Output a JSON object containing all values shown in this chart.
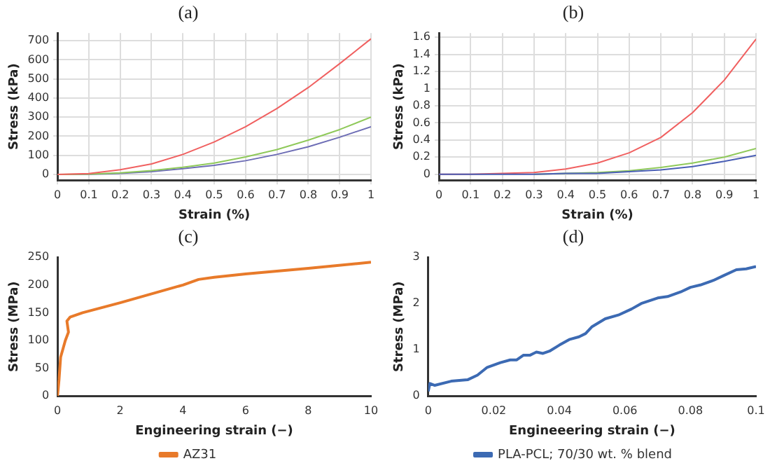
{
  "chart_data": [
    {
      "type": "line",
      "title": "(a)",
      "xlabel": "Strain (%)",
      "ylabel": "Stress (kPa)",
      "x": [
        0,
        0.1,
        0.2,
        0.3,
        0.4,
        0.5,
        0.6,
        0.7,
        0.8,
        0.9,
        1
      ],
      "xlim": [
        0,
        1
      ],
      "xticks": [
        0,
        0.1,
        0.2,
        0.3,
        0.4,
        0.5,
        0.6,
        0.7,
        0.8,
        0.9,
        1
      ],
      "ylim": [
        -30,
        740
      ],
      "yticks": [
        0,
        100,
        200,
        300,
        400,
        500,
        600,
        700
      ],
      "grid": true,
      "marker": "none",
      "legend": false,
      "series": [
        {
          "color": "#f06060",
          "values": [
            0,
            5,
            25,
            55,
            105,
            170,
            250,
            345,
            455,
            580,
            710
          ]
        },
        {
          "color": "#8fc95a",
          "values": [
            0,
            2,
            8,
            20,
            38,
            60,
            92,
            130,
            180,
            235,
            300
          ]
        },
        {
          "color": "#6d6db5",
          "values": [
            0,
            1,
            6,
            15,
            30,
            48,
            72,
            105,
            145,
            195,
            250
          ]
        }
      ]
    },
    {
      "type": "line",
      "title": "(b)",
      "xlabel": "Strain (%)",
      "ylabel": "Stress (kPa)",
      "x": [
        0,
        0.1,
        0.2,
        0.3,
        0.4,
        0.5,
        0.6,
        0.7,
        0.8,
        0.9,
        1
      ],
      "xlim": [
        0,
        1
      ],
      "xticks": [
        0,
        0.1,
        0.2,
        0.3,
        0.4,
        0.5,
        0.6,
        0.7,
        0.8,
        0.9,
        1
      ],
      "ylim": [
        -0.07,
        1.65
      ],
      "yticks": [
        0,
        0.2,
        0.4,
        0.6,
        0.8,
        1,
        1.2,
        1.4,
        1.6
      ],
      "grid": true,
      "marker": "none",
      "legend": false,
      "series": [
        {
          "color": "#4a5fb5",
          "values": [
            0,
            0,
            0,
            0,
            0.01,
            0.01,
            0.03,
            0.05,
            0.09,
            0.15,
            0.22
          ]
        },
        {
          "color": "#f06060",
          "values": [
            0,
            0,
            0.01,
            0.02,
            0.06,
            0.13,
            0.25,
            0.43,
            0.72,
            1.1,
            1.58
          ]
        },
        {
          "color": "#8fc95a",
          "values": [
            null,
            null,
            null,
            0,
            0.01,
            0.02,
            0.04,
            0.08,
            0.13,
            0.2,
            0.3
          ]
        }
      ]
    },
    {
      "type": "line",
      "title": "(c)",
      "xlabel": "Engineering strain (−)",
      "ylabel": "Stress (MPa)",
      "x": [
        0,
        0.05,
        0.1,
        0.25,
        0.35,
        0.3,
        0.4,
        0.8,
        2,
        4,
        4.5,
        5,
        6,
        8,
        10
      ],
      "xlim": [
        0,
        10
      ],
      "xticks": [
        0,
        2,
        4,
        6,
        8,
        10
      ],
      "ylim": [
        0,
        250
      ],
      "yticks": [
        0,
        50,
        100,
        150,
        200,
        250
      ],
      "grid": false,
      "marker": "none",
      "legend": "bottom",
      "series": [
        {
          "name": "AZ31",
          "color": "#e87a2a",
          "values": [
            0,
            30,
            70,
            100,
            115,
            135,
            142,
            150,
            168,
            200,
            210,
            214,
            220,
            230,
            241
          ]
        }
      ]
    },
    {
      "type": "line",
      "title": "(d)",
      "xlabel": "Engineeering strain (−)",
      "ylabel": "Stress (MPa)",
      "x": [
        0,
        0.0005,
        0.002,
        0.007,
        0.012,
        0.015,
        0.018,
        0.022,
        0.025,
        0.027,
        0.029,
        0.031,
        0.033,
        0.035,
        0.037,
        0.04,
        0.043,
        0.046,
        0.048,
        0.05,
        0.054,
        0.058,
        0.062,
        0.065,
        0.07,
        0.073,
        0.077,
        0.08,
        0.083,
        0.087,
        0.09,
        0.094,
        0.097,
        0.1
      ],
      "xlim": [
        0,
        0.1
      ],
      "xticks": [
        0,
        0.02,
        0.04,
        0.06,
        0.08,
        0.1
      ],
      "ylim": [
        0,
        3
      ],
      "yticks": [
        0,
        1,
        2,
        3
      ],
      "grid": false,
      "marker": "none",
      "legend": "bottom",
      "series": [
        {
          "name": "PLA-PCL; 70/30 wt. % blend",
          "color": "#3c6ab3",
          "values": [
            0.1,
            0.27,
            0.23,
            0.32,
            0.35,
            0.45,
            0.62,
            0.72,
            0.78,
            0.78,
            0.88,
            0.88,
            0.95,
            0.92,
            0.97,
            1.1,
            1.22,
            1.28,
            1.35,
            1.5,
            1.67,
            1.75,
            1.88,
            2.0,
            2.12,
            2.15,
            2.25,
            2.35,
            2.4,
            2.5,
            2.6,
            2.73,
            2.75,
            2.8
          ]
        }
      ]
    }
  ]
}
